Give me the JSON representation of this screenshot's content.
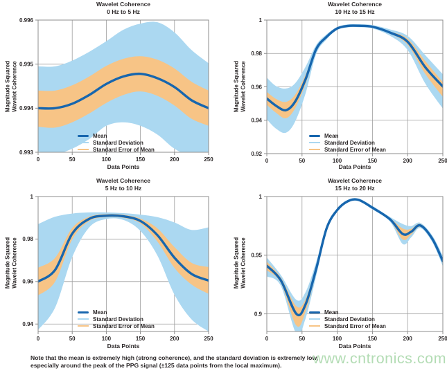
{
  "axis": {
    "ylabel_line1": "Magnitude Squared",
    "ylabel_line2": "Wavelet Coherence",
    "xlabel": "Data Points"
  },
  "legend": {
    "mean": "Mean",
    "std": "Standard Deviation",
    "sem": "Standard Error of Mean"
  },
  "note": {
    "line1": "Note that the mean is extremely high (strong coherence), and the standard deviation is extremely low,",
    "line2": "especially around the peak of the PPG signal (±125 data points from the local maximum)."
  },
  "watermark": {
    "text": "www.cntronics.com",
    "color": "#a6d7a8"
  },
  "colors": {
    "mean": "#1766ae",
    "std": "#abd8f1",
    "sem": "#f7c486",
    "grid": "#9e9e9e",
    "frame": "#8c8c8c",
    "text": "#2b2728",
    "background": "#ffffff"
  },
  "chart_data": [
    {
      "type": "area",
      "title": "Wavelet Coherence",
      "subtitle": "0 Hz to 5 Hz",
      "xlabel": "Data Points",
      "ylabel": "Magnitude Squared Wavelet Coherence",
      "legend_position": "inside-bottom-center",
      "grid": true,
      "xlim": [
        0,
        250
      ],
      "ylim": [
        0.993,
        0.996
      ],
      "xticks": [
        0,
        50,
        100,
        150,
        200,
        250
      ],
      "yticks": [
        {
          "v": 0.996,
          "label": "0.996"
        },
        {
          "v": 0.995,
          "label": "0.995"
        },
        {
          "v": 0.994,
          "label": "0.994"
        },
        {
          "v": 0.993,
          "label": "0.993"
        }
      ],
      "x": [
        0,
        25,
        50,
        75,
        100,
        125,
        150,
        175,
        200,
        225,
        250
      ],
      "series": [
        {
          "name": "Mean",
          "type": "line",
          "values": [
            0.994,
            0.994,
            0.9941,
            0.9943,
            0.99455,
            0.99472,
            0.99478,
            0.99468,
            0.99448,
            0.99418,
            0.994
          ]
        },
        {
          "name": "Standard Deviation",
          "type": "band",
          "top": [
            0.99495,
            0.99495,
            0.99508,
            0.99528,
            0.99552,
            0.99578,
            0.99592,
            0.99595,
            0.99572,
            0.99532,
            0.99502
          ],
          "bottom": [
            0.99302,
            0.99296,
            0.99308,
            0.9933,
            0.9936,
            0.99368,
            0.9936,
            0.9934,
            0.99308,
            0.99292,
            0.993
          ]
        },
        {
          "name": "Standard Error of Mean",
          "type": "band",
          "top": [
            0.9944,
            0.9944,
            0.99452,
            0.99472,
            0.99496,
            0.99512,
            0.99518,
            0.9951,
            0.9949,
            0.9946,
            0.9944
          ],
          "bottom": [
            0.99358,
            0.99356,
            0.99368,
            0.99388,
            0.99412,
            0.9943,
            0.99438,
            0.99428,
            0.99406,
            0.99376,
            0.9936
          ]
        }
      ]
    },
    {
      "type": "area",
      "title": "Wavelet Coherence",
      "subtitle": "10 Hz to 15 Hz",
      "xlabel": "Data Points",
      "ylabel": "Magnitude Squared Wavelet Coherence",
      "legend_position": "inside-bottom-center",
      "grid": true,
      "xlim": [
        0,
        250
      ],
      "ylim": [
        0.92,
        1
      ],
      "xticks": [
        0,
        50,
        100,
        150,
        200,
        250
      ],
      "yticks": [
        {
          "v": 1,
          "label": "1"
        },
        {
          "v": 0.98,
          "label": "0.98"
        },
        {
          "v": 0.96,
          "label": "0.96"
        },
        {
          "v": 0.94,
          "label": "0.94"
        },
        {
          "v": 0.92,
          "label": "0.92"
        }
      ],
      "x": [
        0,
        13,
        27,
        40,
        55,
        70,
        85,
        100,
        115,
        130,
        150,
        175,
        200,
        225,
        250
      ],
      "series": [
        {
          "name": "Mean",
          "type": "line",
          "values": [
            0.953,
            0.9487,
            0.946,
            0.951,
            0.9645,
            0.9825,
            0.99,
            0.995,
            0.9965,
            0.9966,
            0.996,
            0.9925,
            0.987,
            0.9718,
            0.9602
          ]
        },
        {
          "name": "Standard Deviation",
          "type": "band",
          "top": [
            0.9655,
            0.9605,
            0.959,
            0.962,
            0.972,
            0.985,
            0.9915,
            0.9958,
            0.9974,
            0.9975,
            0.997,
            0.9944,
            0.9905,
            0.979,
            0.9675
          ],
          "bottom": [
            0.9405,
            0.935,
            0.9325,
            0.939,
            0.956,
            0.9795,
            0.9885,
            0.9942,
            0.9956,
            0.9957,
            0.995,
            0.9906,
            0.982,
            0.962,
            0.947
          ]
        },
        {
          "name": "Standard Error of Mean",
          "type": "band",
          "top": [
            0.957,
            0.9528,
            0.951,
            0.9552,
            0.9672,
            0.9832,
            0.9905,
            0.9953,
            0.9968,
            0.9969,
            0.9963,
            0.9931,
            0.9888,
            0.9755,
            0.9628
          ],
          "bottom": [
            0.9492,
            0.9445,
            0.9412,
            0.947,
            0.9618,
            0.9818,
            0.9895,
            0.9947,
            0.9962,
            0.9963,
            0.9957,
            0.9919,
            0.9852,
            0.9678,
            0.954
          ]
        }
      ]
    },
    {
      "type": "area",
      "title": "Wavelet Coherence",
      "subtitle": "5 Hz to 10 Hz",
      "xlabel": "Data Points",
      "ylabel": "Magnitude Squared Wavelet Coherence",
      "legend_position": "inside-bottom-center",
      "grid": true,
      "xlim": [
        0,
        250
      ],
      "ylim": [
        0.9365,
        1
      ],
      "xticks": [
        0,
        50,
        100,
        150,
        200,
        250
      ],
      "yticks": [
        {
          "v": 1,
          "label": "1"
        },
        {
          "v": 0.98,
          "label": "0.98"
        },
        {
          "v": 0.96,
          "label": "0.96"
        },
        {
          "v": 0.94,
          "label": "0.94"
        }
      ],
      "x": [
        0,
        25,
        50,
        75,
        100,
        125,
        150,
        175,
        200,
        225,
        250
      ],
      "series": [
        {
          "name": "Mean",
          "type": "line",
          "values": [
            0.96,
            0.9655,
            0.9825,
            0.9895,
            0.991,
            0.9907,
            0.9885,
            0.9818,
            0.9712,
            0.9636,
            0.9605
          ]
        },
        {
          "name": "Standard Deviation",
          "type": "band",
          "top": [
            0.987,
            0.9905,
            0.992,
            0.9925,
            0.9925,
            0.9922,
            0.9915,
            0.9903,
            0.9878,
            0.9843,
            0.9855
          ],
          "bottom": [
            0.9372,
            0.9478,
            0.9715,
            0.9855,
            0.9894,
            0.989,
            0.9838,
            0.9722,
            0.9538,
            0.9422,
            0.9365
          ]
        },
        {
          "name": "Standard Error of Mean",
          "type": "band",
          "top": [
            0.9665,
            0.9712,
            0.9852,
            0.9905,
            0.9917,
            0.9914,
            0.9896,
            0.985,
            0.9762,
            0.9688,
            0.9668
          ],
          "bottom": [
            0.9535,
            0.96,
            0.9798,
            0.9885,
            0.9903,
            0.99,
            0.9874,
            0.9788,
            0.9664,
            0.9586,
            0.9542
          ]
        }
      ]
    },
    {
      "type": "area",
      "title": "Wavelet Coherence",
      "subtitle": "15 Hz to 20 Hz",
      "xlabel": "Data Points",
      "ylabel": "Magnitude Squared Wavelet Coherence",
      "legend_position": "inside-bottom-center",
      "grid": true,
      "xlim": [
        0,
        250
      ],
      "ylim": [
        0.885,
        1
      ],
      "xticks": [
        0,
        50,
        100,
        150,
        200,
        250
      ],
      "yticks": [
        {
          "v": 1,
          "label": "1"
        },
        {
          "v": 0.95,
          "label": "0.95"
        },
        {
          "v": 0.9,
          "label": "0.9"
        }
      ],
      "x": [
        0,
        20,
        42,
        55,
        70,
        85,
        100,
        115,
        130,
        150,
        175,
        193,
        205,
        218,
        235,
        250
      ],
      "series": [
        {
          "name": "Mean",
          "type": "line",
          "values": [
            0.941,
            0.9285,
            0.9,
            0.908,
            0.938,
            0.973,
            0.9885,
            0.996,
            0.9972,
            0.9905,
            0.9806,
            0.9681,
            0.97,
            0.9754,
            0.964,
            0.945
          ]
        },
        {
          "name": "Standard Deviation",
          "type": "band",
          "top": [
            0.948,
            0.933,
            0.912,
            0.9185,
            0.944,
            0.9755,
            0.99,
            0.9972,
            0.9983,
            0.992,
            0.9826,
            0.9766,
            0.9748,
            0.9776,
            0.9668,
            0.9495
          ],
          "bottom": [
            0.932,
            0.9238,
            0.883,
            0.896,
            0.932,
            0.9705,
            0.987,
            0.9948,
            0.9961,
            0.989,
            0.9786,
            0.9596,
            0.9652,
            0.9732,
            0.9612,
            0.9405
          ]
        },
        {
          "name": "Standard Error of Mean",
          "type": "band",
          "top": [
            0.9445,
            0.9308,
            0.9065,
            0.9125,
            0.941,
            0.9745,
            0.9893,
            0.9966,
            0.9977,
            0.9913,
            0.9816,
            0.9728,
            0.9724,
            0.9766,
            0.9654,
            0.947
          ],
          "bottom": [
            0.9372,
            0.9262,
            0.89,
            0.902,
            0.935,
            0.9715,
            0.9877,
            0.9954,
            0.9967,
            0.9897,
            0.9796,
            0.9634,
            0.9676,
            0.9742,
            0.9626,
            0.943
          ]
        }
      ]
    }
  ]
}
